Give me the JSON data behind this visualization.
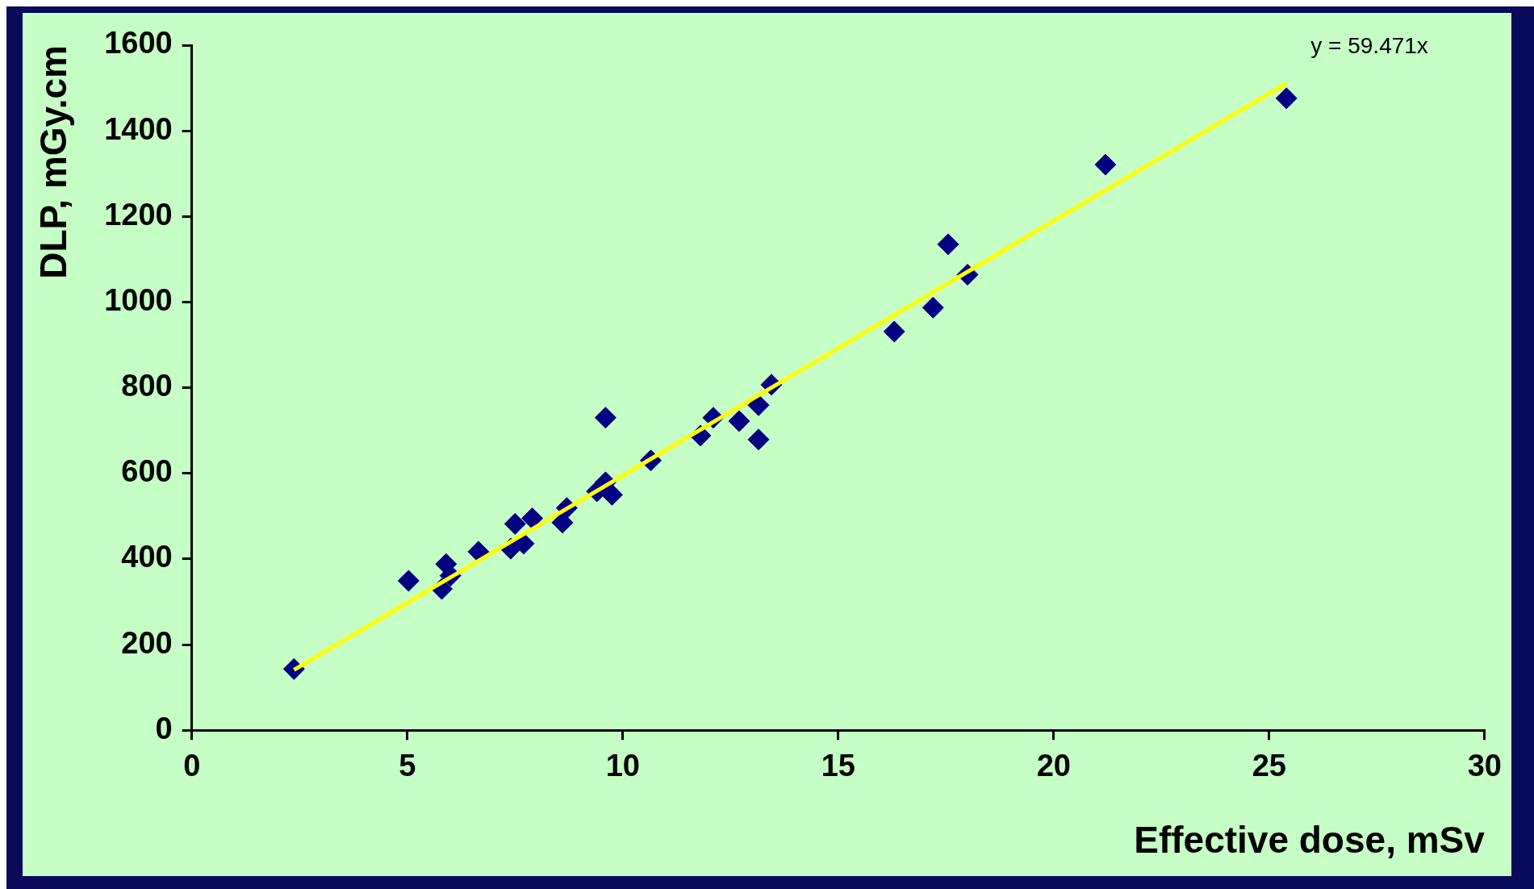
{
  "chart_data": {
    "type": "scatter",
    "xlabel": "Effective dose, mSv",
    "ylabel": "DLP, mGy.cm",
    "annotations": [
      "y = 59.471x"
    ],
    "xlim": [
      0,
      30
    ],
    "xticks": [
      0,
      5,
      10,
      15,
      20,
      25,
      30
    ],
    "ylim": [
      0,
      1600
    ],
    "yticks": [
      0,
      200,
      400,
      600,
      800,
      1000,
      1200,
      1400,
      1600
    ],
    "grid": false,
    "legend": false,
    "marker": "diamond",
    "series": [
      {
        "color": "#000080",
        "x": [
          2.37,
          5.03,
          5.8,
          5.9,
          6.0,
          6.65,
          7.4,
          7.5,
          7.7,
          7.9,
          8.6,
          8.7,
          9.4,
          9.6,
          9.75,
          9.6,
          10.65,
          11.8,
          12.1,
          12.7,
          13.15,
          13.15,
          13.45,
          16.3,
          17.2,
          17.55,
          18.0,
          21.2,
          25.4
        ],
        "values": [
          143,
          349,
          330,
          388,
          361,
          417,
          424,
          482,
          436,
          495,
          485,
          519,
          558,
          579,
          550,
          730,
          630,
          688,
          730,
          722,
          679,
          759,
          807,
          931,
          987,
          1135,
          1064,
          1321,
          1476
        ]
      },
      {
        "type": "line",
        "color": "#ffff00",
        "marker": "none",
        "x": [
          2.37,
          25.4
        ],
        "values": [
          141,
          1511
        ]
      }
    ]
  }
}
